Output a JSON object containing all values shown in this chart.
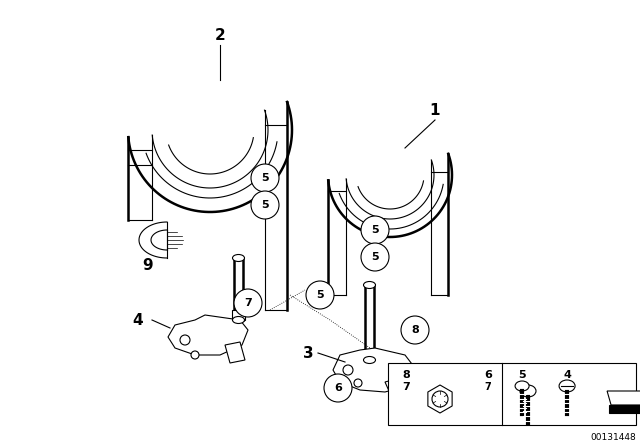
{
  "bg_color": "#ffffff",
  "line_color": "#000000",
  "part_number_text": "00131448",
  "figure_width": 6.4,
  "figure_height": 4.48,
  "dpi": 100
}
